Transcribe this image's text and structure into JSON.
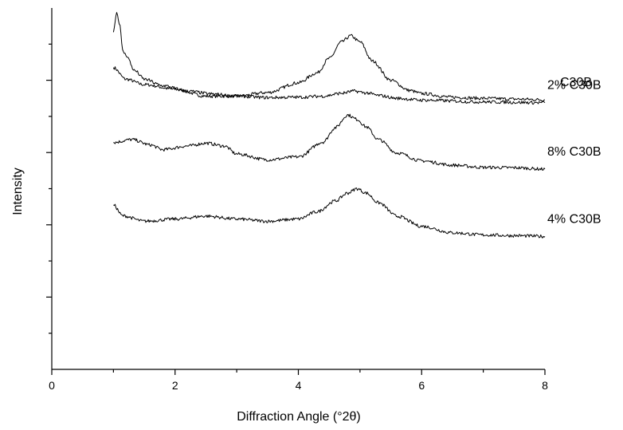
{
  "chart_data": {
    "type": "line",
    "xlabel": "Diffraction Angle (°2θ)",
    "ylabel": "Intensity",
    "xlim": [
      0,
      8
    ],
    "ylim": [
      0,
      100
    ],
    "x_ticks": [
      "0",
      "2",
      "4",
      "6",
      "8"
    ],
    "y_ticks_labeled": false,
    "grid": false,
    "legend": "none",
    "series": [
      {
        "name": "C30B",
        "x": [
          1.0,
          1.2,
          1.5,
          2.0,
          2.5,
          3.0,
          3.5,
          4.0,
          4.3,
          4.5,
          4.7,
          4.85,
          5.0,
          5.2,
          5.5,
          5.8,
          6.0,
          6.5,
          7.0,
          7.5,
          8.0
        ],
        "y": [
          83.5,
          80.3,
          78.8,
          77.5,
          75.6,
          75.6,
          76.6,
          79.3,
          82.0,
          86.0,
          90.6,
          92.3,
          90.6,
          85.3,
          80.0,
          77.2,
          76.3,
          75.3,
          75.0,
          74.8,
          74.6
        ]
      },
      {
        "name": "8% C30B",
        "x": [
          1.0,
          1.3,
          1.6,
          1.8,
          2.2,
          2.5,
          2.8,
          3.0,
          3.5,
          4.0,
          4.4,
          4.6,
          4.8,
          4.95,
          5.1,
          5.3,
          5.6,
          6.0,
          6.5,
          7.0,
          7.5,
          8.0
        ],
        "y": [
          62.8,
          63.6,
          62.1,
          60.8,
          61.8,
          62.6,
          61.8,
          59.6,
          58.0,
          58.8,
          62.9,
          66.9,
          70.4,
          69.2,
          67.1,
          63.6,
          59.9,
          57.7,
          56.5,
          55.9,
          55.8,
          55.4
        ]
      },
      {
        "name": "4% C30B",
        "x": [
          1.0,
          1.15,
          1.5,
          2.0,
          2.5,
          3.0,
          3.5,
          4.0,
          4.3,
          4.6,
          4.8,
          4.95,
          5.1,
          5.3,
          5.6,
          6.0,
          6.5,
          7.0,
          7.5,
          8.0
        ],
        "y": [
          45.5,
          42.5,
          41.0,
          41.6,
          42.4,
          41.6,
          41.0,
          41.6,
          43.6,
          46.6,
          48.8,
          50.0,
          48.8,
          46.1,
          42.4,
          39.6,
          37.8,
          37.2,
          37.0,
          36.8
        ]
      },
      {
        "name": "2% C30B",
        "x": [
          1.0,
          1.05,
          1.1,
          1.15,
          1.2,
          1.35,
          1.5,
          1.8,
          2.2,
          2.6,
          3.0,
          3.5,
          4.0,
          4.4,
          4.7,
          4.9,
          5.1,
          5.3,
          5.6,
          6.0,
          7.0,
          8.0
        ],
        "y": [
          93.3,
          98.8,
          95.8,
          88.2,
          87.0,
          82.6,
          80.3,
          78.5,
          77.0,
          76.2,
          75.6,
          75.2,
          75.3,
          75.6,
          76.4,
          77.0,
          76.5,
          75.8,
          75.0,
          74.5,
          74.0,
          73.8
        ]
      }
    ]
  }
}
